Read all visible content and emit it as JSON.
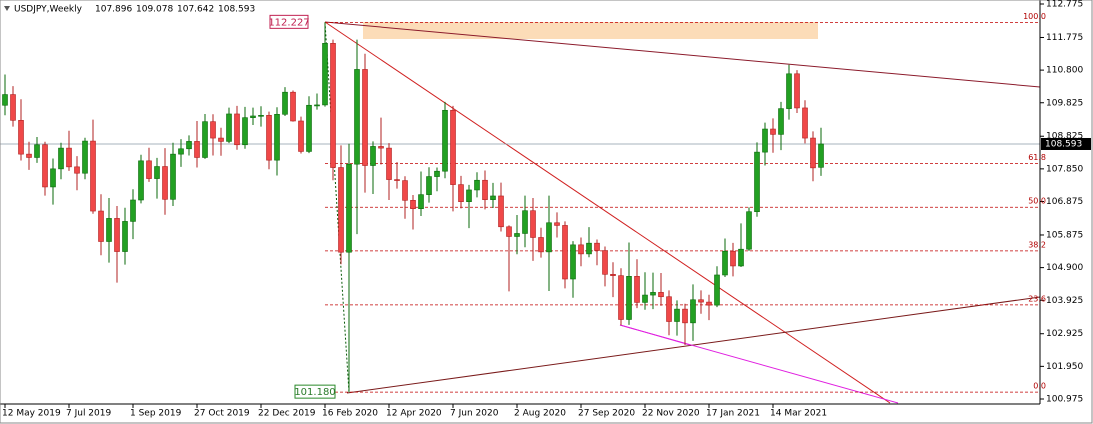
{
  "chart_data": {
    "type": "candlestick",
    "title": "USDJPY,Weekly",
    "categories": [
      "12 May 2019",
      null,
      null,
      null,
      null,
      null,
      null,
      null,
      "7 Jul 2019",
      null,
      null,
      null,
      null,
      null,
      null,
      null,
      "1 Sep 2019",
      null,
      null,
      null,
      null,
      null,
      null,
      null,
      "27 Oct 2019",
      null,
      null,
      null,
      null,
      null,
      null,
      null,
      "22 Dec 2019",
      null,
      null,
      null,
      null,
      null,
      null,
      null,
      "16 Feb 2020",
      null,
      null,
      null,
      null,
      null,
      null,
      null,
      "12 Apr 2020",
      null,
      null,
      null,
      null,
      null,
      null,
      null,
      "7 Jun 2020",
      null,
      null,
      null,
      null,
      null,
      null,
      null,
      "2 Aug 2020",
      null,
      null,
      null,
      null,
      null,
      null,
      null,
      "27 Sep 2020",
      null,
      null,
      null,
      null,
      null,
      null,
      null,
      "22 Nov 2020",
      null,
      null,
      null,
      null,
      null,
      null,
      null,
      "17 Jan 2021",
      null,
      null,
      null,
      null,
      null,
      null,
      null,
      "14 Mar 2021",
      null,
      null,
      null,
      null,
      null,
      null
    ],
    "open": [
      109.75,
      110.07,
      109.3,
      108.29,
      108.19,
      108.57,
      107.31,
      107.85,
      108.47,
      107.91,
      107.72,
      108.68,
      106.59,
      105.68,
      106.37,
      105.38,
      106.28,
      106.92,
      108.09,
      107.56,
      107.92,
      106.94,
      108.29,
      108.45,
      108.67,
      108.19,
      109.26,
      108.77,
      108.67,
      109.49,
      108.57,
      109.38,
      109.43,
      109.45,
      108.11,
      109.48,
      110.14,
      109.28,
      108.37,
      109.75,
      109.76,
      111.6,
      107.89,
      105.36,
      107.99,
      110.82,
      107.95,
      108.52,
      108.47,
      107.53,
      107.5,
      106.91,
      106.66,
      107.08,
      107.62,
      107.78,
      109.6,
      107.38,
      106.87,
      107.22,
      107.51,
      106.93,
      107.04,
      106.12,
      105.83,
      105.92,
      106.6,
      105.8,
      105.37,
      106.24,
      106.16,
      104.56,
      105.58,
      105.31,
      105.63,
      105.41,
      104.7,
      104.66,
      103.35,
      104.64,
      103.86,
      104.08,
      104.16,
      104.03,
      103.29,
      103.66,
      103.25,
      103.94,
      103.87,
      103.78,
      104.68,
      105.39,
      104.95,
      105.45,
      106.57,
      108.35,
      109.04,
      108.88,
      109.65,
      110.69,
      109.67,
      108.77,
      107.896
    ],
    "high": [
      110.67,
      110.32,
      109.93,
      108.66,
      108.8,
      108.66,
      108.16,
      108.63,
      108.99,
      108.23,
      108.78,
      109.32,
      107.09,
      106.98,
      106.74,
      106.69,
      107.24,
      108.27,
      108.48,
      108.18,
      108.47,
      108.63,
      108.74,
      108.85,
      109.28,
      109.49,
      109.48,
      109.08,
      109.68,
      109.73,
      109.7,
      109.68,
      109.72,
      109.56,
      109.69,
      110.29,
      110.19,
      109.41,
      110.02,
      110.1,
      112.227,
      111.71,
      108.55,
      108.6,
      111.71,
      111.29,
      108.67,
      109.38,
      108.62,
      108.05,
      107.63,
      107.07,
      107.77,
      107.9,
      107.89,
      109.85,
      109.73,
      107.64,
      107.37,
      107.75,
      107.8,
      107.43,
      107.44,
      106.16,
      106.47,
      107.05,
      106.98,
      106.09,
      107.05,
      106.55,
      106.28,
      105.69,
      105.8,
      106.11,
      105.74,
      105.53,
      105.06,
      104.88,
      105.65,
      105.15,
      104.76,
      104.75,
      104.74,
      104.22,
      103.92,
      103.82,
      104.4,
      104.22,
      104.09,
      104.94,
      105.77,
      105.64,
      106.22,
      106.7,
      108.64,
      109.23,
      109.36,
      109.85,
      110.96,
      110.8,
      109.9,
      108.97,
      109.078
    ],
    "low": [
      109.45,
      109.11,
      108.1,
      107.82,
      108.03,
      107.05,
      106.78,
      107.54,
      107.79,
      107.21,
      107.54,
      106.51,
      105.27,
      105.05,
      104.45,
      104.99,
      105.75,
      106.82,
      107.46,
      106.96,
      106.48,
      106.74,
      107.91,
      108.25,
      107.89,
      108.15,
      108.25,
      108.24,
      108.62,
      108.42,
      108.45,
      109.16,
      109.11,
      107.84,
      107.65,
      109.43,
      109.26,
      108.31,
      108.32,
      109.62,
      109.71,
      107.51,
      105.0,
      101.18,
      105.9,
      107.14,
      107.1,
      107.98,
      106.92,
      107.26,
      106.36,
      106.04,
      106.44,
      106.84,
      107.18,
      107.57,
      106.58,
      106.67,
      106.08,
      107.0,
      106.64,
      106.68,
      105.98,
      104.19,
      105.3,
      105.51,
      105.1,
      105.2,
      104.2,
      105.8,
      104.28,
      104.0,
      104.94,
      105.21,
      104.97,
      104.34,
      104.02,
      103.18,
      103.19,
      103.69,
      103.64,
      103.66,
      103.76,
      102.88,
      102.87,
      102.59,
      102.71,
      103.52,
      103.33,
      103.72,
      104.62,
      104.64,
      104.92,
      105.4,
      106.42,
      107.95,
      108.33,
      108.41,
      109.32,
      109.52,
      108.61,
      107.48,
      107.642
    ],
    "close": [
      110.07,
      109.3,
      108.29,
      108.19,
      108.57,
      107.31,
      107.85,
      108.47,
      107.91,
      107.72,
      108.68,
      106.59,
      105.68,
      106.37,
      105.38,
      106.28,
      106.92,
      108.09,
      107.56,
      107.92,
      106.94,
      108.29,
      108.45,
      108.67,
      108.19,
      109.26,
      108.77,
      108.67,
      109.49,
      108.57,
      109.38,
      109.43,
      109.45,
      108.11,
      109.48,
      110.14,
      109.28,
      108.37,
      109.75,
      109.76,
      111.6,
      107.89,
      105.36,
      107.99,
      110.82,
      107.95,
      108.52,
      108.47,
      107.53,
      107.5,
      106.91,
      106.66,
      107.08,
      107.62,
      107.78,
      109.6,
      107.38,
      106.87,
      107.22,
      107.51,
      106.93,
      107.04,
      106.12,
      105.83,
      105.92,
      106.6,
      105.8,
      105.37,
      106.24,
      106.16,
      104.56,
      105.58,
      105.31,
      105.63,
      105.41,
      104.7,
      104.66,
      103.35,
      104.64,
      103.86,
      104.08,
      104.16,
      104.03,
      103.29,
      103.66,
      103.25,
      103.94,
      103.87,
      103.78,
      104.68,
      105.39,
      104.95,
      105.45,
      106.57,
      108.35,
      109.04,
      108.88,
      109.65,
      110.69,
      109.67,
      108.77,
      107.88,
      108.593
    ],
    "up_color": "#22a022",
    "down_color": "#f04848",
    "ylim": [
      100.975,
      112.775
    ],
    "yticks": [
      112.775,
      111.775,
      {
        "value": 110.8,
        "label": "110.800"
      },
      109.825,
      108.825,
      {
        "value": 107.85,
        "label": "107.850"
      },
      106.875,
      105.875,
      {
        "value": 104.9,
        "label": "104.900"
      },
      103.925,
      102.925,
      {
        "value": 101.95,
        "label": "101.950"
      },
      100.975
    ],
    "fib_high": 112.227,
    "fib_low": {
      "value": 101.18,
      "label": "101.180"
    },
    "fib_levels": [
      {
        "value": 100,
        "label": "100.0"
      },
      61.8,
      {
        "value": 50,
        "label": "50.0"
      },
      38.2,
      23.6,
      {
        "value": 0,
        "label": "0.0"
      }
    ],
    "grid": false
  }
}
